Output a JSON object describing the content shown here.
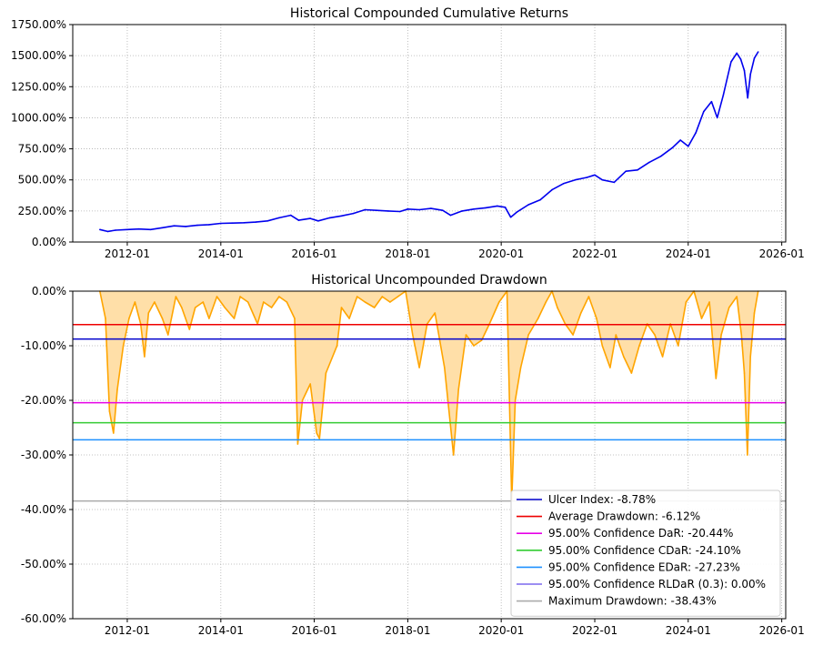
{
  "chart_data": [
    {
      "type": "line",
      "title": "Historical Compounded Cumulative Returns",
      "xlabel": "",
      "ylabel": "",
      "ylim": [
        0,
        1750
      ],
      "xlim": [
        "2010-11-01",
        "2026-02-01"
      ],
      "grid": true,
      "x_ticks": [
        "2012-01",
        "2014-01",
        "2016-01",
        "2018-01",
        "2020-01",
        "2022-01",
        "2024-01",
        "2026-01"
      ],
      "y_ticks": [
        "0.00%",
        "250.00%",
        "500.00%",
        "750.00%",
        "1000.00%",
        "1250.00%",
        "1500.00%",
        "1750.00%"
      ],
      "line_color": "#0000ee",
      "series": [
        {
          "x": [
            "2011-06-01",
            "2011-08-01",
            "2011-10-01",
            "2012-01-01",
            "2012-04-01",
            "2012-07-01",
            "2012-10-01",
            "2013-01-01",
            "2013-04-01",
            "2013-07-01",
            "2013-10-01",
            "2014-01-01",
            "2014-04-01",
            "2014-07-01",
            "2014-10-01",
            "2015-01-01",
            "2015-04-01",
            "2015-07-01",
            "2015-09-01",
            "2015-12-01",
            "2016-02-01",
            "2016-05-01",
            "2016-08-01",
            "2016-11-01",
            "2017-02-01",
            "2017-05-01",
            "2017-08-01",
            "2017-11-01",
            "2018-01-01",
            "2018-04-01",
            "2018-07-01",
            "2018-10-01",
            "2018-12-01",
            "2019-03-01",
            "2019-06-01",
            "2019-09-01",
            "2019-12-01",
            "2020-02-01",
            "2020-03-15",
            "2020-05-01",
            "2020-08-01",
            "2020-11-01",
            "2021-02-01",
            "2021-05-01",
            "2021-08-01",
            "2021-11-01",
            "2022-01-01",
            "2022-03-01",
            "2022-06-01",
            "2022-09-01",
            "2022-12-01",
            "2023-03-01",
            "2023-06-01",
            "2023-09-01",
            "2023-11-01",
            "2024-01-01",
            "2024-03-01",
            "2024-05-01",
            "2024-07-01",
            "2024-08-15",
            "2024-10-01",
            "2024-12-01",
            "2025-01-15",
            "2025-02-15",
            "2025-03-15",
            "2025-04-10",
            "2025-05-01",
            "2025-06-01",
            "2025-07-01"
          ],
          "values": [
            100,
            85,
            95,
            100,
            105,
            100,
            115,
            130,
            125,
            135,
            140,
            150,
            152,
            155,
            160,
            170,
            195,
            215,
            175,
            190,
            170,
            195,
            210,
            230,
            260,
            255,
            250,
            245,
            265,
            260,
            270,
            255,
            215,
            250,
            265,
            275,
            290,
            280,
            200,
            240,
            300,
            340,
            420,
            470,
            500,
            520,
            540,
            500,
            480,
            570,
            580,
            640,
            690,
            760,
            820,
            770,
            880,
            1050,
            1130,
            1000,
            1180,
            1450,
            1520,
            1470,
            1380,
            1160,
            1350,
            1480,
            1530
          ]
        }
      ]
    },
    {
      "type": "area",
      "title": "Historical Uncompounded Drawdown",
      "xlabel": "",
      "ylabel": "",
      "ylim": [
        -60,
        0
      ],
      "xlim": [
        "2010-11-01",
        "2026-02-01"
      ],
      "grid": true,
      "x_ticks": [
        "2012-01",
        "2014-01",
        "2016-01",
        "2018-01",
        "2020-01",
        "2022-01",
        "2024-01",
        "2026-01"
      ],
      "y_ticks": [
        "0.00%",
        "-10.00%",
        "-20.00%",
        "-30.00%",
        "-40.00%",
        "-50.00%",
        "-60.00%"
      ],
      "line_color": "#ffa500",
      "fill_color": "#ffdfa8",
      "series": [
        {
          "x": [
            "2011-06-01",
            "2011-07-15",
            "2011-08-15",
            "2011-09-15",
            "2011-10-15",
            "2011-12-01",
            "2012-01-15",
            "2012-03-01",
            "2012-04-15",
            "2012-05-15",
            "2012-06-15",
            "2012-08-01",
            "2012-10-01",
            "2012-11-15",
            "2013-01-15",
            "2013-03-01",
            "2013-05-01",
            "2013-06-15",
            "2013-08-15",
            "2013-10-01",
            "2013-12-01",
            "2014-02-01",
            "2014-04-15",
            "2014-06-01",
            "2014-08-01",
            "2014-10-15",
            "2014-12-01",
            "2015-02-01",
            "2015-04-01",
            "2015-06-01",
            "2015-08-01",
            "2015-08-25",
            "2015-10-01",
            "2015-12-01",
            "2016-01-20",
            "2016-02-11",
            "2016-04-01",
            "2016-06-27",
            "2016-08-01",
            "2016-10-01",
            "2016-12-01",
            "2017-02-01",
            "2017-04-15",
            "2017-06-15",
            "2017-08-15",
            "2017-10-15",
            "2017-12-15",
            "2018-02-08",
            "2018-04-01",
            "2018-06-01",
            "2018-08-01",
            "2018-10-15",
            "2018-12-24",
            "2019-02-01",
            "2019-04-01",
            "2019-06-01",
            "2019-08-01",
            "2019-10-01",
            "2019-12-15",
            "2020-02-15",
            "2020-03-23",
            "2020-04-20",
            "2020-06-01",
            "2020-08-01",
            "2020-10-15",
            "2020-12-15",
            "2021-02-01",
            "2021-03-15",
            "2021-05-15",
            "2021-07-15",
            "2021-09-15",
            "2021-11-15",
            "2022-01-15",
            "2022-03-01",
            "2022-05-01",
            "2022-06-15",
            "2022-08-15",
            "2022-10-15",
            "2022-12-15",
            "2023-02-15",
            "2023-04-15",
            "2023-06-15",
            "2023-08-15",
            "2023-10-15",
            "2023-12-15",
            "2024-02-15",
            "2024-04-15",
            "2024-06-15",
            "2024-08-05",
            "2024-09-15",
            "2024-11-15",
            "2025-01-15",
            "2025-02-20",
            "2025-03-15",
            "2025-04-08",
            "2025-05-01",
            "2025-06-01",
            "2025-07-01"
          ],
          "values": [
            0,
            -5,
            -22,
            -26,
            -18,
            -10,
            -5,
            -2,
            -6,
            -12,
            -4,
            -2,
            -5,
            -8,
            -1,
            -3,
            -7,
            -3,
            -2,
            -5,
            -1,
            -3,
            -5,
            -1,
            -2,
            -6,
            -2,
            -3,
            -1,
            -2,
            -5,
            -28,
            -20,
            -17,
            -26,
            -27,
            -15,
            -10,
            -3,
            -5,
            -1,
            -2,
            -3,
            -1,
            -2,
            -1,
            0,
            -8,
            -14,
            -6,
            -4,
            -14,
            -30,
            -18,
            -8,
            -10,
            -9,
            -6,
            -2,
            0,
            -38.43,
            -20,
            -14,
            -8,
            -5,
            -2,
            0,
            -3,
            -6,
            -8,
            -4,
            -1,
            -5,
            -10,
            -14,
            -8,
            -12,
            -15,
            -10,
            -6,
            -8,
            -12,
            -6,
            -10,
            -2,
            0,
            -5,
            -2,
            -16,
            -8,
            -3,
            -1,
            -8,
            -15,
            -30,
            -12,
            -4,
            0
          ]
        }
      ],
      "hlines": [
        {
          "label": "Ulcer Index: -8.78%",
          "value": -8.78,
          "color": "#0000cc"
        },
        {
          "label": "Average Drawdown: -6.12%",
          "value": -6.12,
          "color": "#ee0000"
        },
        {
          "label": "95.00% Confidence DaR: -20.44%",
          "value": -20.44,
          "color": "#e600e6"
        },
        {
          "label": "95.00% Confidence CDaR: -24.10%",
          "value": -24.1,
          "color": "#33cc33"
        },
        {
          "label": "95.00% Confidence EDaR: -27.23%",
          "value": -27.23,
          "color": "#1e90ff"
        },
        {
          "label": "95.00% Confidence RLDaR (0.3): 0.00%",
          "value": 0.0,
          "color": "#7b68ee"
        },
        {
          "label": "Maximum Drawdown: -38.43%",
          "value": -38.43,
          "color": "#aaaaaa"
        }
      ],
      "legend_position": "lower-right"
    }
  ]
}
